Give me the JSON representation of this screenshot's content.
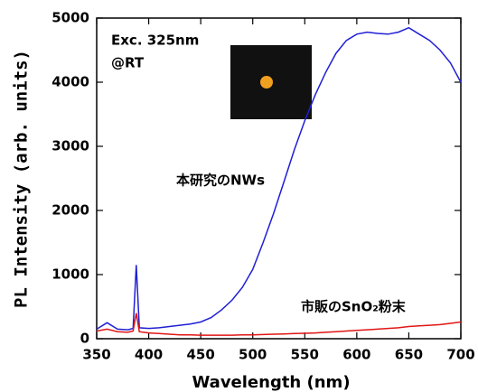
{
  "chart_data": {
    "type": "line",
    "x_label": "Wavelength (nm)",
    "y_label": "PL Intensity (arb. units)",
    "annotations": [
      "Exc. 325nm",
      "@RT",
      "本研究のNWs",
      "市販のSnO₂粉末"
    ],
    "x": [
      350,
      360,
      370,
      380,
      385,
      388,
      391,
      400,
      410,
      420,
      430,
      440,
      450,
      460,
      470,
      480,
      490,
      500,
      510,
      520,
      530,
      540,
      550,
      560,
      570,
      580,
      590,
      600,
      610,
      620,
      630,
      640,
      650,
      660,
      670,
      680,
      690,
      700
    ],
    "series": [
      {
        "name": "本研究のNWs",
        "color": "#1f1fd6",
        "values": [
          150,
          250,
          150,
          140,
          160,
          1150,
          170,
          160,
          170,
          190,
          210,
          230,
          260,
          330,
          450,
          600,
          800,
          1080,
          1500,
          1950,
          2450,
          2950,
          3400,
          3800,
          4150,
          4450,
          4650,
          4750,
          4780,
          4760,
          4750,
          4780,
          4850,
          4750,
          4650,
          4500,
          4300,
          4000
        ]
      },
      {
        "name": "市販のSnO₂粉末",
        "color": "#e01515",
        "values": [
          120,
          150,
          110,
          100,
          120,
          400,
          110,
          90,
          80,
          70,
          60,
          60,
          55,
          55,
          55,
          55,
          60,
          60,
          65,
          70,
          75,
          80,
          85,
          90,
          100,
          110,
          120,
          130,
          140,
          150,
          160,
          170,
          190,
          200,
          210,
          220,
          240,
          260
        ]
      }
    ],
    "xlim": [
      350,
      700
    ],
    "xticks": [
      350,
      400,
      450,
      500,
      550,
      600,
      650,
      700
    ],
    "ylim": [
      0,
      5000
    ],
    "yticks": [
      0,
      1000,
      2000,
      3000,
      4000,
      5000
    ]
  }
}
